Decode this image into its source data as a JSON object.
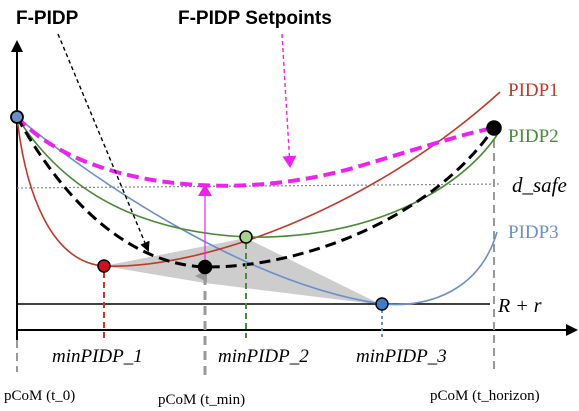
{
  "title_left": "F-PIDP",
  "title_right": "F-PIDP Setpoints",
  "curve_labels": {
    "pidp1": "PIDP1",
    "pidp2": "PIDP2",
    "pidp3": "PIDP3",
    "d_safe": "d_safe",
    "r_plus_r": "R + r"
  },
  "min_labels": {
    "min1": "minPIDP_1",
    "min2": "minPIDP_2",
    "min3": "minPIDP_3"
  },
  "time_labels": {
    "t0": "pCoM (t_0)",
    "tmin": "pCoM (t_min)",
    "thorizon": "pCoM (t_horizon)"
  },
  "colors": {
    "pidp1": "#c0392b",
    "pidp2": "#4a8a3a",
    "pidp3": "#6b8fc7",
    "setpoints": "#ee22ee",
    "fpidp": "#000000",
    "hull": "#c8c8c8",
    "dsafe": "#888888"
  }
}
